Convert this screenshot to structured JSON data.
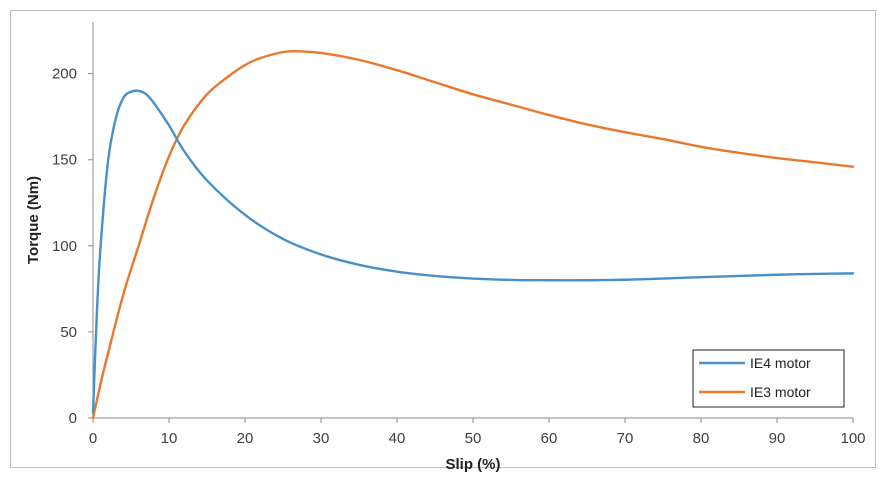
{
  "chart_data": {
    "type": "line",
    "title": "",
    "xlabel": "Slip (%)",
    "ylabel": "Torque (Nm)",
    "xlim": [
      0,
      100
    ],
    "ylim": [
      0,
      230
    ],
    "xticks": [
      0,
      10,
      20,
      30,
      40,
      50,
      60,
      70,
      80,
      90,
      100
    ],
    "yticks": [
      0,
      50,
      100,
      150,
      200
    ],
    "grid": false,
    "legend_position": "bottom-right",
    "series": [
      {
        "name": "IE4 motor",
        "color": "#4a90c8",
        "x": [
          0,
          0.5,
          1,
          2,
          3,
          4,
          5,
          6,
          7,
          8,
          10,
          12,
          15,
          20,
          25,
          30,
          35,
          40,
          45,
          50,
          55,
          60,
          65,
          70,
          75,
          80,
          85,
          90,
          95,
          100
        ],
        "y": [
          3,
          60,
          100,
          150,
          174,
          186,
          189.5,
          190,
          188,
          183,
          170,
          155,
          138,
          118,
          104,
          95,
          89,
          85,
          82.5,
          81,
          80.2,
          80,
          80,
          80.3,
          81,
          81.8,
          82.5,
          83.2,
          83.7,
          84
        ]
      },
      {
        "name": "IE3 motor",
        "color": "#e8782e",
        "x": [
          0,
          1,
          2,
          4,
          6,
          8,
          10,
          12,
          15,
          18,
          20,
          22,
          25,
          27,
          30,
          35,
          40,
          45,
          50,
          55,
          60,
          65,
          70,
          75,
          80,
          85,
          90,
          95,
          100
        ],
        "y": [
          0,
          20,
          38,
          72,
          100,
          128,
          152,
          170,
          188,
          199,
          205,
          209,
          212.5,
          213,
          212,
          208,
          202,
          195,
          188,
          182,
          176,
          170.5,
          166,
          162,
          157.5,
          154,
          151,
          148.5,
          146
        ]
      }
    ]
  }
}
